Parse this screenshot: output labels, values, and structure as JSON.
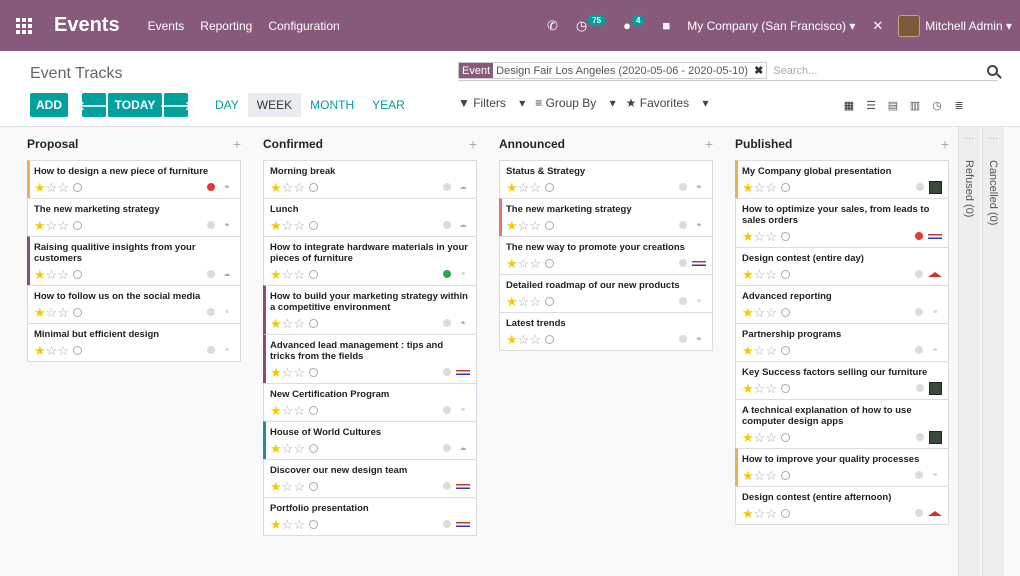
{
  "topbar": {
    "app_name": "Events",
    "menu": [
      "Events",
      "Reporting",
      "Configuration"
    ],
    "activity_count": "75",
    "message_count": "4",
    "company": "My Company (San Francisco)",
    "user": "Mitchell Admin",
    "bg_color": "#875a7b"
  },
  "control_panel": {
    "title": "Event Tracks",
    "facet_label": "Event",
    "facet_value": "Design Fair Los Angeles (2020-05-06 - 2020-05-10)",
    "search_placeholder": "Search...",
    "add_label": "ADD",
    "today_label": "TODAY",
    "scales": [
      "DAY",
      "WEEK",
      "MONTH",
      "YEAR"
    ],
    "active_scale": "WEEK",
    "filters_label": "Filters",
    "group_by_label": "Group By",
    "favorites_label": "Favorites",
    "accent_color": "#00a09d"
  },
  "columns": [
    {
      "title": "Proposal",
      "cards": [
        {
          "title": "How to design a new piece of furniture",
          "accent": "#f0ad4e",
          "status": "red",
          "logo": "leaf"
        },
        {
          "title": "The new marketing strategy",
          "accent": "",
          "status": "grey",
          "logo": "leaf"
        },
        {
          "title": "Raising qualitive insights from your customers",
          "accent": "#8e4b6b",
          "status": "grey",
          "logo": "cloud"
        },
        {
          "title": "How to follow us on the social media",
          "accent": "",
          "status": "grey",
          "logo": "text"
        },
        {
          "title": "Minimal but efficient design",
          "accent": "",
          "status": "grey",
          "logo": "text"
        }
      ]
    },
    {
      "title": "Confirmed",
      "cards": [
        {
          "title": "Morning break",
          "accent": "",
          "status": "grey",
          "logo": "cloud"
        },
        {
          "title": "Lunch",
          "accent": "",
          "status": "grey",
          "logo": "cloud"
        },
        {
          "title": "How to integrate hardware materials in your pieces of furniture",
          "accent": "",
          "status": "green",
          "logo": "text"
        },
        {
          "title": "How to build your marketing strategy within a competitive environment",
          "accent": "#8e4b6b",
          "status": "grey",
          "logo": "leaf"
        },
        {
          "title": "Advanced lead management : tips and tricks from the fields",
          "accent": "#8e4b6b",
          "status": "grey",
          "logo": "flag"
        },
        {
          "title": "New Certification Program",
          "accent": "",
          "status": "grey",
          "logo": "text"
        },
        {
          "title": "House of World Cultures",
          "accent": "#2e8b8b",
          "status": "grey",
          "logo": "cloud"
        },
        {
          "title": "Discover our new design team",
          "accent": "",
          "status": "grey",
          "logo": "flag"
        },
        {
          "title": "Portfolio presentation",
          "accent": "",
          "status": "grey",
          "logo": "flag"
        }
      ]
    },
    {
      "title": "Announced",
      "cards": [
        {
          "title": "Status & Strategy",
          "accent": "",
          "status": "grey",
          "logo": "leaf"
        },
        {
          "title": "The new marketing strategy",
          "accent": "#e57373",
          "status": "grey",
          "logo": "leaf"
        },
        {
          "title": "The new way to promote your creations",
          "accent": "",
          "status": "grey",
          "logo": "flag"
        },
        {
          "title": "Detailed roadmap of our new products",
          "accent": "",
          "status": "grey",
          "logo": "text"
        },
        {
          "title": "Latest trends",
          "accent": "",
          "status": "grey",
          "logo": "leaf"
        }
      ]
    },
    {
      "title": "Published",
      "cards": [
        {
          "title": "My Company global presentation",
          "accent": "#f0ad4e",
          "status": "grey",
          "logo": "dark"
        },
        {
          "title": "How to optimize your sales, from leads to sales orders",
          "accent": "",
          "status": "red",
          "logo": "flag"
        },
        {
          "title": "Design contest (entire day)",
          "accent": "",
          "status": "grey",
          "logo": "roof"
        },
        {
          "title": "Advanced reporting",
          "accent": "",
          "status": "grey",
          "logo": "text"
        },
        {
          "title": "Partnership programs",
          "accent": "",
          "status": "grey",
          "logo": "text"
        },
        {
          "title": "Key Success factors selling our furniture",
          "accent": "",
          "status": "grey",
          "logo": "dark"
        },
        {
          "title": "A technical explanation of how to use computer design apps",
          "accent": "",
          "status": "grey",
          "logo": "dark"
        },
        {
          "title": "How to improve your quality processes",
          "accent": "#f0ad4e",
          "status": "grey",
          "logo": "text"
        },
        {
          "title": "Design contest (entire afternoon)",
          "accent": "",
          "status": "grey",
          "logo": "roof"
        }
      ]
    }
  ],
  "folded_columns": [
    "Refused (0)",
    "Cancelled (0)"
  ]
}
